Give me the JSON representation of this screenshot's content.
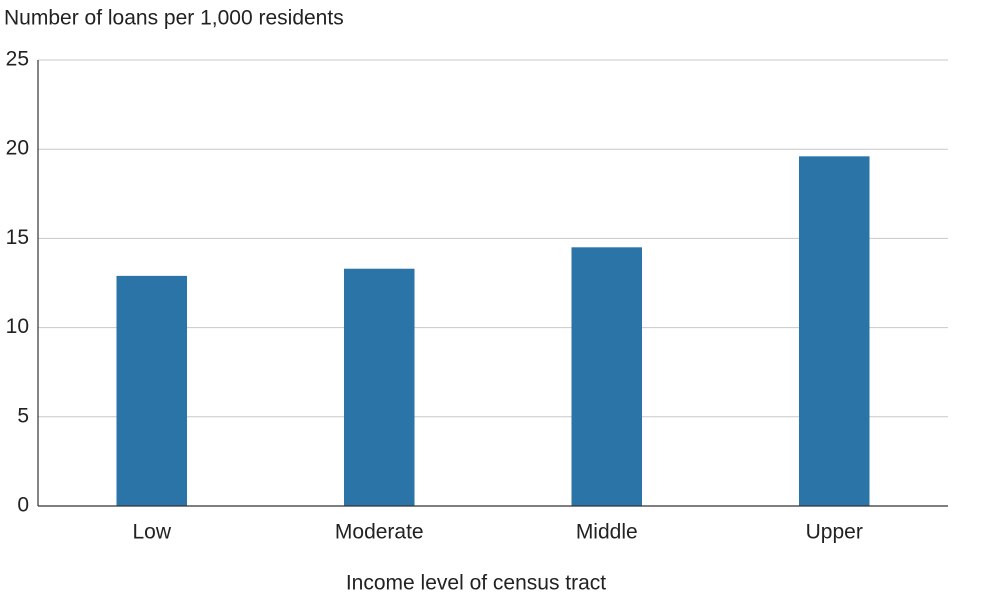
{
  "chart_data": {
    "type": "bar",
    "y_label": "Number of loans per 1,000 residents",
    "x_label": "Income level of census tract",
    "categories": [
      "Low",
      "Moderate",
      "Middle",
      "Upper"
    ],
    "values": [
      12.9,
      13.3,
      14.5,
      19.6
    ],
    "color": "#2a74a8",
    "ylim": [
      0,
      25
    ],
    "yticks": [
      0,
      5,
      10,
      15,
      20,
      25
    ],
    "grid": true
  }
}
